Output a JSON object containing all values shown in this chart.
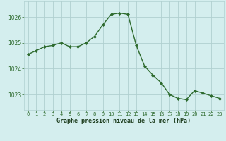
{
  "hours": [
    0,
    1,
    2,
    3,
    4,
    5,
    6,
    7,
    8,
    9,
    10,
    11,
    12,
    13,
    14,
    15,
    16,
    17,
    18,
    19,
    20,
    21,
    22,
    23
  ],
  "pressure": [
    1024.55,
    1024.7,
    1024.85,
    1024.9,
    1025.0,
    1024.85,
    1024.85,
    1025.0,
    1025.25,
    1025.7,
    1026.1,
    1026.15,
    1026.1,
    1024.9,
    1024.1,
    1023.75,
    1023.45,
    1023.0,
    1022.85,
    1022.8,
    1023.15,
    1023.05,
    1022.95,
    1022.85
  ],
  "line_color": "#2d6a2d",
  "marker_color": "#2d6a2d",
  "bg_color": "#d4eeee",
  "grid_color": "#b0d0d0",
  "xlabel": "Graphe pression niveau de la mer (hPa)",
  "xlabel_color": "#1a3a1a",
  "yticks": [
    1023,
    1024,
    1025,
    1026
  ],
  "ylim": [
    1022.4,
    1026.6
  ],
  "xlim": [
    -0.5,
    23.5
  ],
  "tick_color": "#2d6a2d",
  "axis_label_color": "#1a3a1a"
}
